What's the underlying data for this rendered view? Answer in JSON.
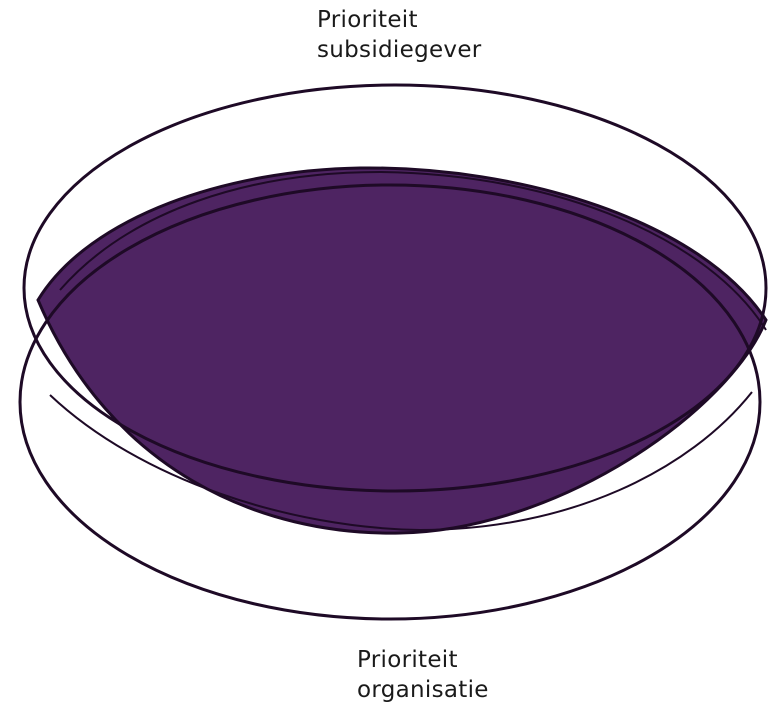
{
  "diagram": {
    "type": "overlapping-ellipses",
    "colors": {
      "overlap_fill": "#4e2462",
      "outline": "#1e0a26",
      "background": "#ffffff"
    },
    "sets": [
      {
        "id": "subsidiegever",
        "label_lines": [
          "Prioriteit",
          "subsidiegever"
        ]
      },
      {
        "id": "organisatie",
        "label_lines": [
          "Prioriteit",
          "organisatie"
        ]
      }
    ]
  }
}
